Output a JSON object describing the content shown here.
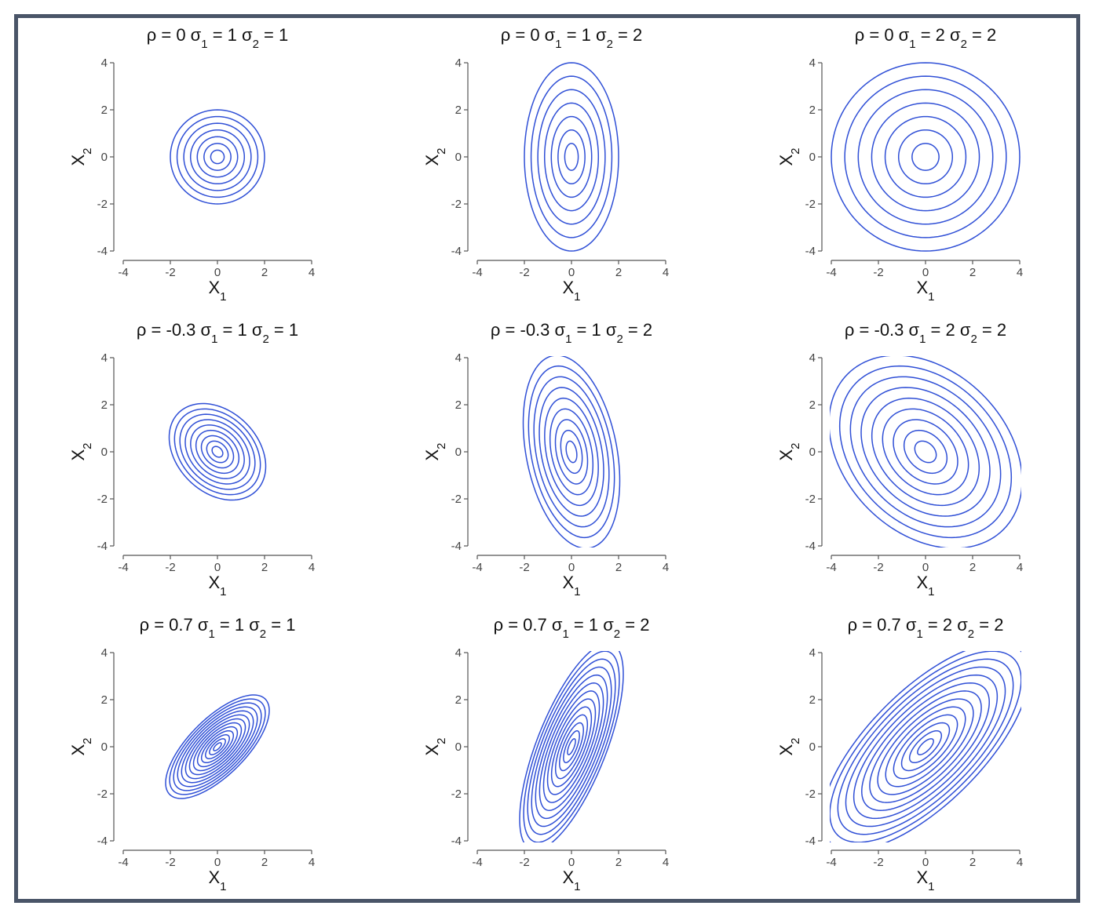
{
  "chart_data": {
    "type": "contour",
    "description_source": "bivariate normal density contours",
    "line_color": "#2f4fd6",
    "frame_color": "#4a5568",
    "axis_color": "#555555",
    "xlabel": "X",
    "xlabel_sub": "1",
    "ylabel": "X",
    "ylabel_sub": "2",
    "xlim": [
      -4,
      4
    ],
    "ylim": [
      -4,
      4
    ],
    "xticks": [
      -4,
      -2,
      0,
      2,
      4
    ],
    "yticks": [
      -4,
      -2,
      0,
      2,
      4
    ],
    "grid": false,
    "layout": {
      "rows": 3,
      "cols": 3
    },
    "panels": [
      {
        "rho": "0",
        "sigma1": "1",
        "sigma2": "1",
        "levels": 7,
        "outer_radius": 2.0
      },
      {
        "rho": "0",
        "sigma1": "1",
        "sigma2": "2",
        "levels": 7,
        "outer_radius": 2.0
      },
      {
        "rho": "0",
        "sigma1": "2",
        "sigma2": "2",
        "levels": 7,
        "outer_radius": 2.0
      },
      {
        "rho": "-0.3",
        "sigma1": "1",
        "sigma2": "1",
        "levels": 9,
        "outer_radius": 2.05
      },
      {
        "rho": "-0.3",
        "sigma1": "1",
        "sigma2": "2",
        "levels": 9,
        "outer_radius": 2.05
      },
      {
        "rho": "-0.3",
        "sigma1": "2",
        "sigma2": "2",
        "levels": 9,
        "outer_radius": 2.05
      },
      {
        "rho": "0.7",
        "sigma1": "1",
        "sigma2": "1",
        "levels": 13,
        "outer_radius": 2.2
      },
      {
        "rho": "0.7",
        "sigma1": "1",
        "sigma2": "2",
        "levels": 13,
        "outer_radius": 2.2
      },
      {
        "rho": "0.7",
        "sigma1": "2",
        "sigma2": "2",
        "levels": 13,
        "outer_radius": 2.2
      }
    ]
  }
}
